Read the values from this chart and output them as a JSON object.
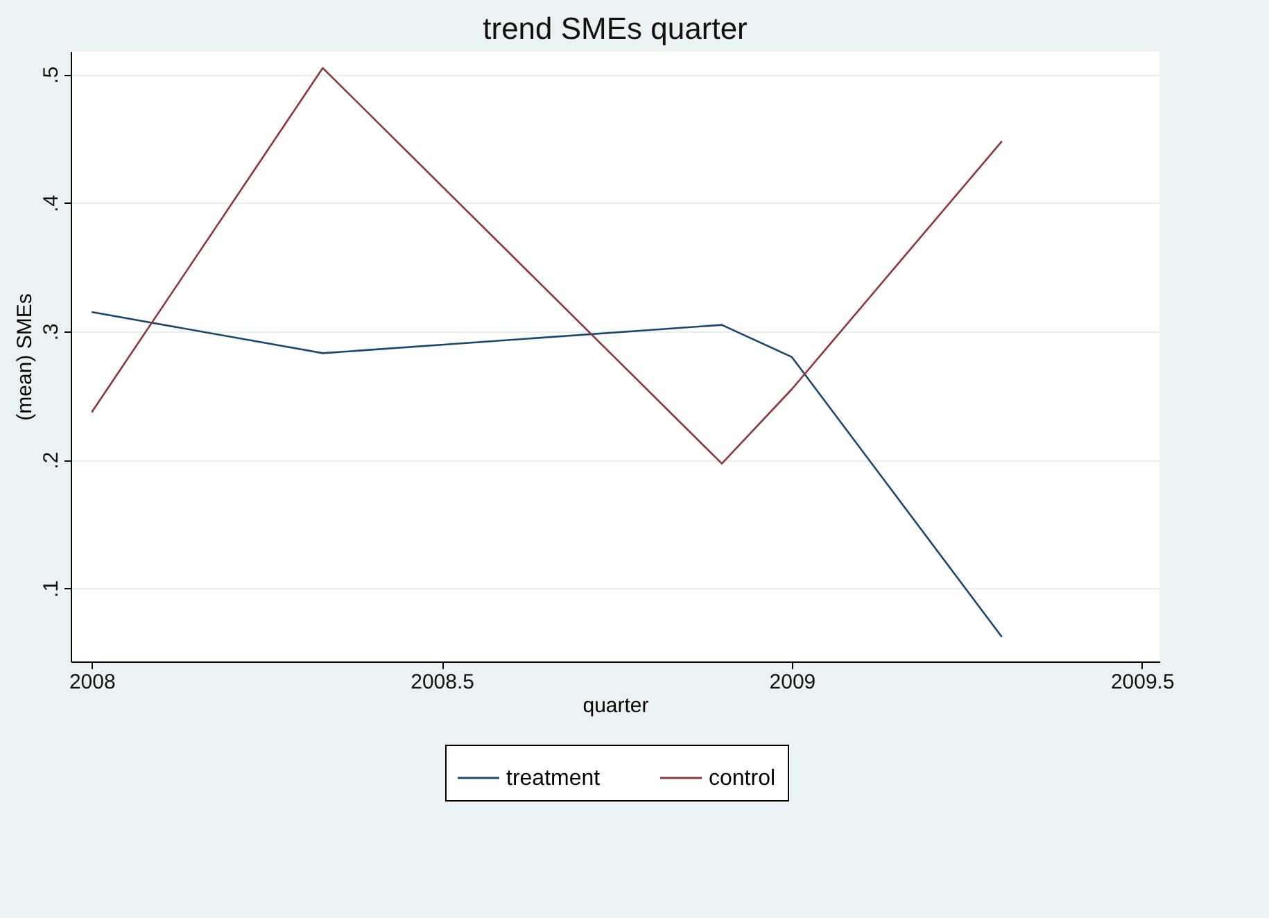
{
  "chart_data": {
    "type": "line",
    "title": "trend SMEs quarter",
    "xlabel": "quarter",
    "ylabel": "(mean) SMEs",
    "x": [
      2008,
      2008.33,
      2008.9,
      2009,
      2009.3
    ],
    "series": [
      {
        "name": "treatment",
        "color": "#1a476f",
        "values": [
          0.315,
          0.283,
          0.305,
          0.28,
          0.062
        ]
      },
      {
        "name": "control",
        "color": "#90353b",
        "values": [
          0.237,
          0.505,
          0.197,
          0.255,
          0.448
        ]
      }
    ],
    "xlim": [
      2007.97,
      2009.525
    ],
    "xticks": [
      2008,
      2008.5,
      2009,
      2009.5
    ],
    "ylim": [
      0.043,
      0.518
    ],
    "yticks": [
      {
        "value": 0.1,
        "label": ".1"
      },
      {
        "value": 0.2,
        "label": ".2"
      },
      {
        "value": 0.3,
        "label": ".3"
      },
      {
        "value": 0.4,
        "label": ".4"
      },
      {
        "value": 0.5,
        "label": ".5"
      }
    ],
    "grid": "y",
    "legend": "bottom",
    "marker": "none",
    "line_style": "solid"
  }
}
